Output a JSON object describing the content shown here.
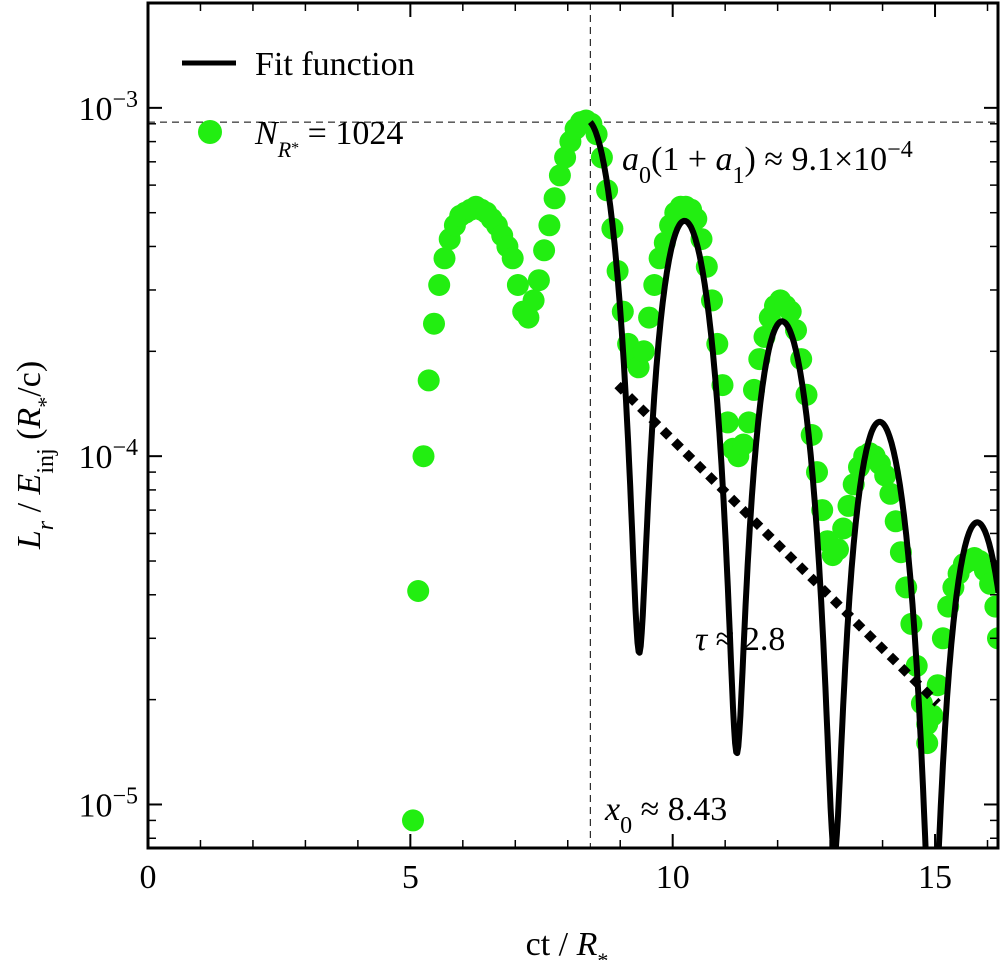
{
  "chart_data": {
    "type": "scatter",
    "xlabel": "ct / R*",
    "ylabel": "L_r / E_inj (R*/c)",
    "xlim": [
      0,
      16.2
    ],
    "ylim": [
      7.5e-06,
      0.002
    ],
    "yscale": "log",
    "grid": false,
    "legend_position": "top-left",
    "x_ticks": [
      {
        "value": 0,
        "label": "0"
      },
      {
        "value": 5,
        "label": "5"
      },
      {
        "value": 10,
        "label": "10"
      },
      {
        "value": 15,
        "label": "15"
      }
    ],
    "y_ticks": [
      {
        "value": 0.001,
        "base": "10",
        "exp": "−3"
      },
      {
        "value": 0.0001,
        "base": "10",
        "exp": "−4"
      },
      {
        "value": 1e-05,
        "base": "10",
        "exp": "−5"
      }
    ],
    "legend": {
      "fit_label": "Fit function",
      "data_label_main": "N",
      "data_label_sub": "R",
      "data_label_subsub": "*",
      "data_label_rest": " = 1024"
    },
    "colors": {
      "data": "#22ee11",
      "fit": "#000000"
    },
    "series": [
      {
        "name": "N_R* = 1024",
        "kind": "scatter",
        "points": [
          [
            5.05,
            9e-06
          ],
          [
            5.15,
            4.1e-05
          ],
          [
            5.25,
            0.0001
          ],
          [
            5.35,
            0.000165
          ],
          [
            5.45,
            0.00024
          ],
          [
            5.55,
            0.00031
          ],
          [
            5.65,
            0.00037
          ],
          [
            5.75,
            0.00042
          ],
          [
            5.85,
            0.00046
          ],
          [
            5.95,
            0.00049
          ],
          [
            6.05,
            0.0005
          ],
          [
            6.15,
            0.00051
          ],
          [
            6.25,
            0.00052
          ],
          [
            6.35,
            0.00051
          ],
          [
            6.45,
            0.0005
          ],
          [
            6.55,
            0.00048
          ],
          [
            6.65,
            0.00046
          ],
          [
            6.75,
            0.00043
          ],
          [
            6.85,
            0.0004
          ],
          [
            6.95,
            0.00037
          ],
          [
            7.05,
            0.00031
          ],
          [
            7.15,
            0.00026
          ],
          [
            7.25,
            0.00025
          ],
          [
            7.35,
            0.00028
          ],
          [
            7.45,
            0.00032
          ],
          [
            7.55,
            0.00039
          ],
          [
            7.65,
            0.00046
          ],
          [
            7.75,
            0.00055
          ],
          [
            7.85,
            0.00064
          ],
          [
            7.95,
            0.00072
          ],
          [
            8.05,
            0.0008
          ],
          [
            8.15,
            0.00087
          ],
          [
            8.25,
            0.00091
          ],
          [
            8.35,
            0.00092
          ],
          [
            8.45,
            0.0009
          ],
          [
            8.55,
            0.00084
          ],
          [
            8.65,
            0.00072
          ],
          [
            8.75,
            0.00058
          ],
          [
            8.85,
            0.00045
          ],
          [
            8.95,
            0.00034
          ],
          [
            9.05,
            0.00026
          ],
          [
            9.15,
            0.00021
          ],
          [
            9.25,
            0.00019
          ],
          [
            9.35,
            0.00018
          ],
          [
            9.45,
            0.0002
          ],
          [
            9.55,
            0.00025
          ],
          [
            9.65,
            0.00031
          ],
          [
            9.75,
            0.00037
          ],
          [
            9.85,
            0.00041
          ],
          [
            9.95,
            0.00046
          ],
          [
            10.05,
            0.0005
          ],
          [
            10.15,
            0.00052
          ],
          [
            10.25,
            0.00052
          ],
          [
            10.35,
            0.00051
          ],
          [
            10.45,
            0.00048
          ],
          [
            10.55,
            0.00042
          ],
          [
            10.65,
            0.00035
          ],
          [
            10.75,
            0.00028
          ],
          [
            10.85,
            0.00021
          ],
          [
            10.95,
            0.00016
          ],
          [
            11.05,
            0.000125
          ],
          [
            11.15,
            0.000105
          ],
          [
            11.25,
            0.0001
          ],
          [
            11.35,
            0.000108
          ],
          [
            11.45,
            0.000125
          ],
          [
            11.55,
            0.000155
          ],
          [
            11.65,
            0.00019
          ],
          [
            11.75,
            0.00022
          ],
          [
            11.85,
            0.00025
          ],
          [
            11.95,
            0.00027
          ],
          [
            12.05,
            0.00028
          ],
          [
            12.15,
            0.00027
          ],
          [
            12.25,
            0.00026
          ],
          [
            12.35,
            0.00023
          ],
          [
            12.45,
            0.00019
          ],
          [
            12.55,
            0.00015
          ],
          [
            12.65,
            0.000115
          ],
          [
            12.75,
            9e-05
          ],
          [
            12.85,
            7e-05
          ],
          [
            12.95,
            5.7e-05
          ],
          [
            13.05,
            5.2e-05
          ],
          [
            13.15,
            5.4e-05
          ],
          [
            13.25,
            6.2e-05
          ],
          [
            13.35,
            7.2e-05
          ],
          [
            13.45,
            8.3e-05
          ],
          [
            13.55,
            9.3e-05
          ],
          [
            13.65,
            0.0001
          ],
          [
            13.75,
            0.000102
          ],
          [
            13.85,
            0.0001
          ],
          [
            13.95,
            9.5e-05
          ],
          [
            14.05,
            8.8e-05
          ],
          [
            14.15,
            7.8e-05
          ],
          [
            14.25,
            6.5e-05
          ],
          [
            14.35,
            5.3e-05
          ],
          [
            14.45,
            4.2e-05
          ],
          [
            14.55,
            3.3e-05
          ],
          [
            14.65,
            2.5e-05
          ],
          [
            14.75,
            1.95e-05
          ],
          [
            14.85,
            1.7e-05
          ],
          [
            14.95,
            1.8e-05
          ],
          [
            14.85,
            1.5e-05
          ],
          [
            15.05,
            2.2e-05
          ],
          [
            15.15,
            3e-05
          ],
          [
            15.25,
            3.7e-05
          ],
          [
            15.35,
            4.2e-05
          ],
          [
            15.45,
            4.6e-05
          ],
          [
            15.55,
            4.9e-05
          ],
          [
            15.65,
            5e-05
          ],
          [
            15.75,
            5.1e-05
          ],
          [
            15.85,
            5e-05
          ],
          [
            15.95,
            4.7e-05
          ],
          [
            16.05,
            4.3e-05
          ],
          [
            16.15,
            3.7e-05
          ],
          [
            16.2,
            3e-05
          ]
        ]
      },
      {
        "name": "Fit function",
        "kind": "line",
        "params": {
          "x0": 8.43,
          "a0a1sum": 0.00091,
          "amp": 0.92,
          "tau": 2.8,
          "period": 1.86
        }
      }
    ],
    "annotations": {
      "peak_value": 0.00091,
      "x0_value": 8.43,
      "peak_label_left": "a",
      "peak_label_sub": "0",
      "peak_label_mid": "(1 + ",
      "peak_label_a1": "a",
      "peak_label_a1_sub": "1",
      "peak_label_right": ") ≈ 9.1×10",
      "peak_label_exp": "−4",
      "x0_label": "x",
      "x0_label_sub": "0",
      "x0_label_rest": " ≈ 8.43",
      "tau_label": "τ",
      "tau_label_rest": " ≈ 2.8",
      "tau_line": {
        "x1": 8.95,
        "y1": 0.00016,
        "x2": 15.05,
        "y2": 1.95e-05
      }
    }
  }
}
